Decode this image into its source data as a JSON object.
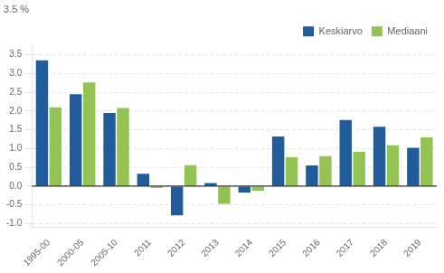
{
  "chart_data": {
    "type": "bar",
    "annotation": "3.5 %",
    "categories": [
      "1995-00",
      "2000-05",
      "2005-10",
      "2011",
      "2012",
      "2013",
      "2014",
      "2015",
      "2016",
      "2017",
      "2018",
      "2019"
    ],
    "series": [
      {
        "name": "Keskiarvo",
        "color": "#1f5c99",
        "values": [
          3.35,
          2.45,
          1.95,
          0.33,
          -0.78,
          0.08,
          -0.17,
          1.32,
          0.55,
          1.76,
          1.58,
          1.02
        ]
      },
      {
        "name": "Mediaani",
        "color": "#92c353",
        "values": [
          2.1,
          2.76,
          2.08,
          -0.05,
          0.56,
          -0.47,
          -0.12,
          0.77,
          0.8,
          0.91,
          1.09,
          1.3
        ]
      }
    ],
    "ylim": [
      -1.1,
      3.75
    ],
    "yticks": [
      {
        "value": -1.0,
        "label": "-1.0"
      },
      -0.5,
      {
        "value": 0.0,
        "label": "0.0"
      },
      0.5,
      {
        "value": 1.0,
        "label": "1.0"
      },
      1.5,
      {
        "value": 2.0,
        "label": "2.0"
      },
      2.5,
      {
        "value": 3.0,
        "label": "3.0"
      },
      3.5
    ],
    "grid": true,
    "legend": "upper right"
  }
}
